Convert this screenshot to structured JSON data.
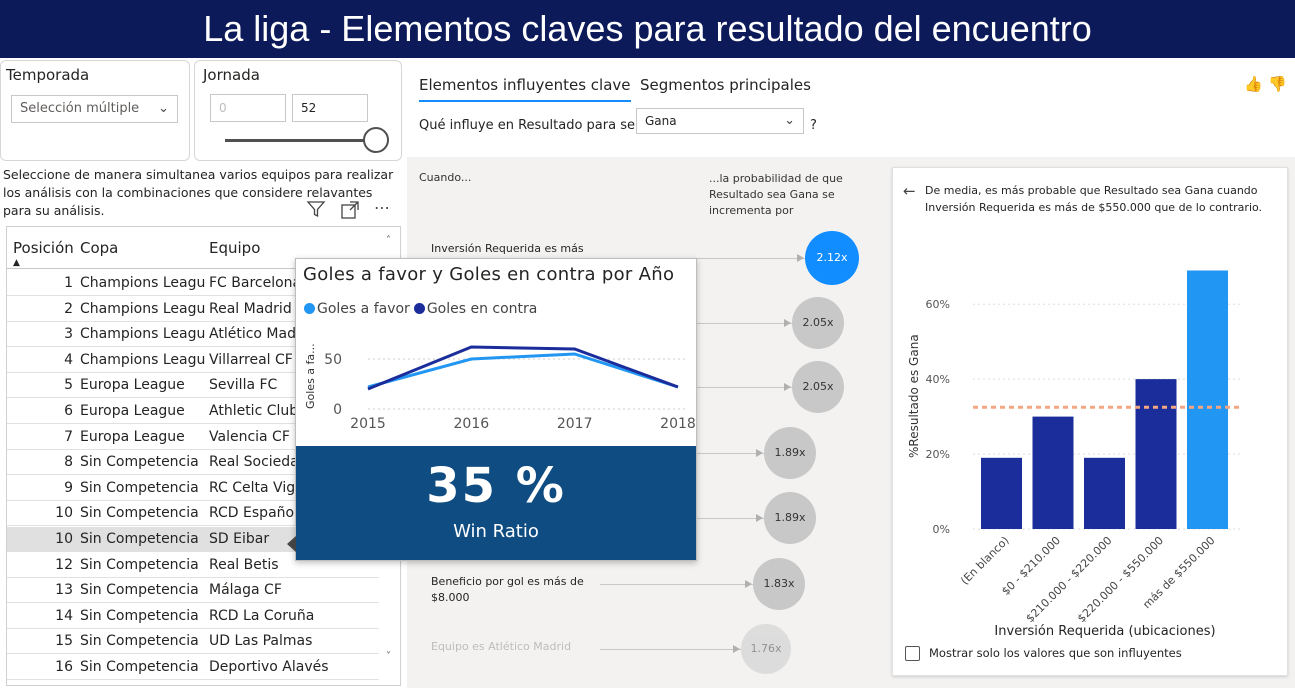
{
  "header": {
    "title": "La liga - Elementos claves para resultado del encuentro"
  },
  "slicers": {
    "temporada": {
      "label": "Temporada",
      "value": "Selección múltiple"
    },
    "jornada": {
      "label": "Jornada",
      "min": "0",
      "max": "52",
      "slider_level": 1.0
    }
  },
  "instruction": "Seleccione de manera simultanea varios equipos para realizar los análisis con la combinaciones que considere relavantes para su análisis.",
  "table": {
    "headers": [
      "Posición",
      "Copa",
      "Equipo"
    ],
    "rows": [
      [
        "1",
        "Champions League",
        "FC Barcelona"
      ],
      [
        "2",
        "Champions League",
        "Real Madrid CF"
      ],
      [
        "3",
        "Champions League",
        "Atlético Madrid"
      ],
      [
        "4",
        "Champions League",
        "Villarreal CF"
      ],
      [
        "5",
        "Europa League",
        "Sevilla FC"
      ],
      [
        "6",
        "Europa League",
        "Athletic Club Bilbao"
      ],
      [
        "7",
        "Europa League",
        "Valencia CF"
      ],
      [
        "8",
        "Sin Competencia",
        "Real Sociedad"
      ],
      [
        "9",
        "Sin Competencia",
        "RC Celta Vigo"
      ],
      [
        "10",
        "Sin Competencia",
        "RCD Español"
      ],
      [
        "10",
        "Sin Competencia",
        "SD Eibar"
      ],
      [
        "12",
        "Sin Competencia",
        "Real Betis"
      ],
      [
        "13",
        "Sin Competencia",
        "Málaga CF"
      ],
      [
        "14",
        "Sin Competencia",
        "RCD La Coruña"
      ],
      [
        "15",
        "Sin Competencia",
        "UD Las Palmas"
      ],
      [
        "16",
        "Sin Competencia",
        "Deportivo Alavés"
      ]
    ],
    "selected_index": 10
  },
  "influencers": {
    "tabs": [
      "Elementos influyentes clave",
      "Segmentos principales"
    ],
    "question": "Qué influye en Resultado para ser",
    "question_value": "Gana",
    "question_mark": "?",
    "col_when": "Cuando...",
    "col_prob": "...la probabilidad de que Resultado sea Gana se incrementa por",
    "items": [
      {
        "text": "Inversión Requerida es más",
        "factor": "2.12x",
        "highlight": true
      },
      {
        "text": "",
        "factor": "2.05x"
      },
      {
        "text": "",
        "factor": "2.05x"
      },
      {
        "text": "",
        "factor": "1.89x"
      },
      {
        "text": "",
        "factor": "1.89x"
      },
      {
        "text": "Beneficio por gol es más de $8.000",
        "factor": "1.83x"
      },
      {
        "text": "Equipo es Atlético Madrid",
        "factor": "1.76x"
      }
    ]
  },
  "detail": {
    "description": "De media, es más probable que Resultado sea Gana cuando Inversión Requerida es más de $550.000 que de lo contrario.",
    "checkbox_label": "Mostrar solo los valores que son influyentes",
    "colors": {
      "bar": "#1a2d9b",
      "highlight": "#2196f3",
      "avg_line": "#f4a582"
    }
  },
  "tooltip": {
    "title": "Goles a favor y Goles en contra por Año",
    "kpi_value": "35 %",
    "kpi_label": "Win Ratio"
  },
  "chart_data": [
    {
      "type": "line",
      "title": "Goles a favor y Goles en contra por Año",
      "ylabel": "Goles a fa...",
      "x": [
        "2015",
        "2016",
        "2017",
        "2018"
      ],
      "ylim": [
        0,
        70
      ],
      "yticks": [
        0,
        50
      ],
      "series": [
        {
          "name": "Goles a favor",
          "color": "#2196f3",
          "values": [
            22,
            50,
            55,
            22
          ]
        },
        {
          "name": "Goles en contra",
          "color": "#1a2d9b",
          "values": [
            20,
            62,
            60,
            22
          ]
        }
      ]
    },
    {
      "type": "bar",
      "ylabel": "%Resultado es Gana",
      "xlabel": "Inversión Requerida (ubicaciones)",
      "categories": [
        "(En blanco)",
        "$0 - $210.000",
        "$210.000 - $220.000",
        "$220.000 - $550.000",
        "más de $550.000"
      ],
      "values": [
        19,
        30,
        19,
        40,
        69
      ],
      "yticks": [
        "0%",
        "20%",
        "40%",
        "60%"
      ],
      "ylim": [
        0,
        75
      ],
      "average": 32.5
    }
  ]
}
